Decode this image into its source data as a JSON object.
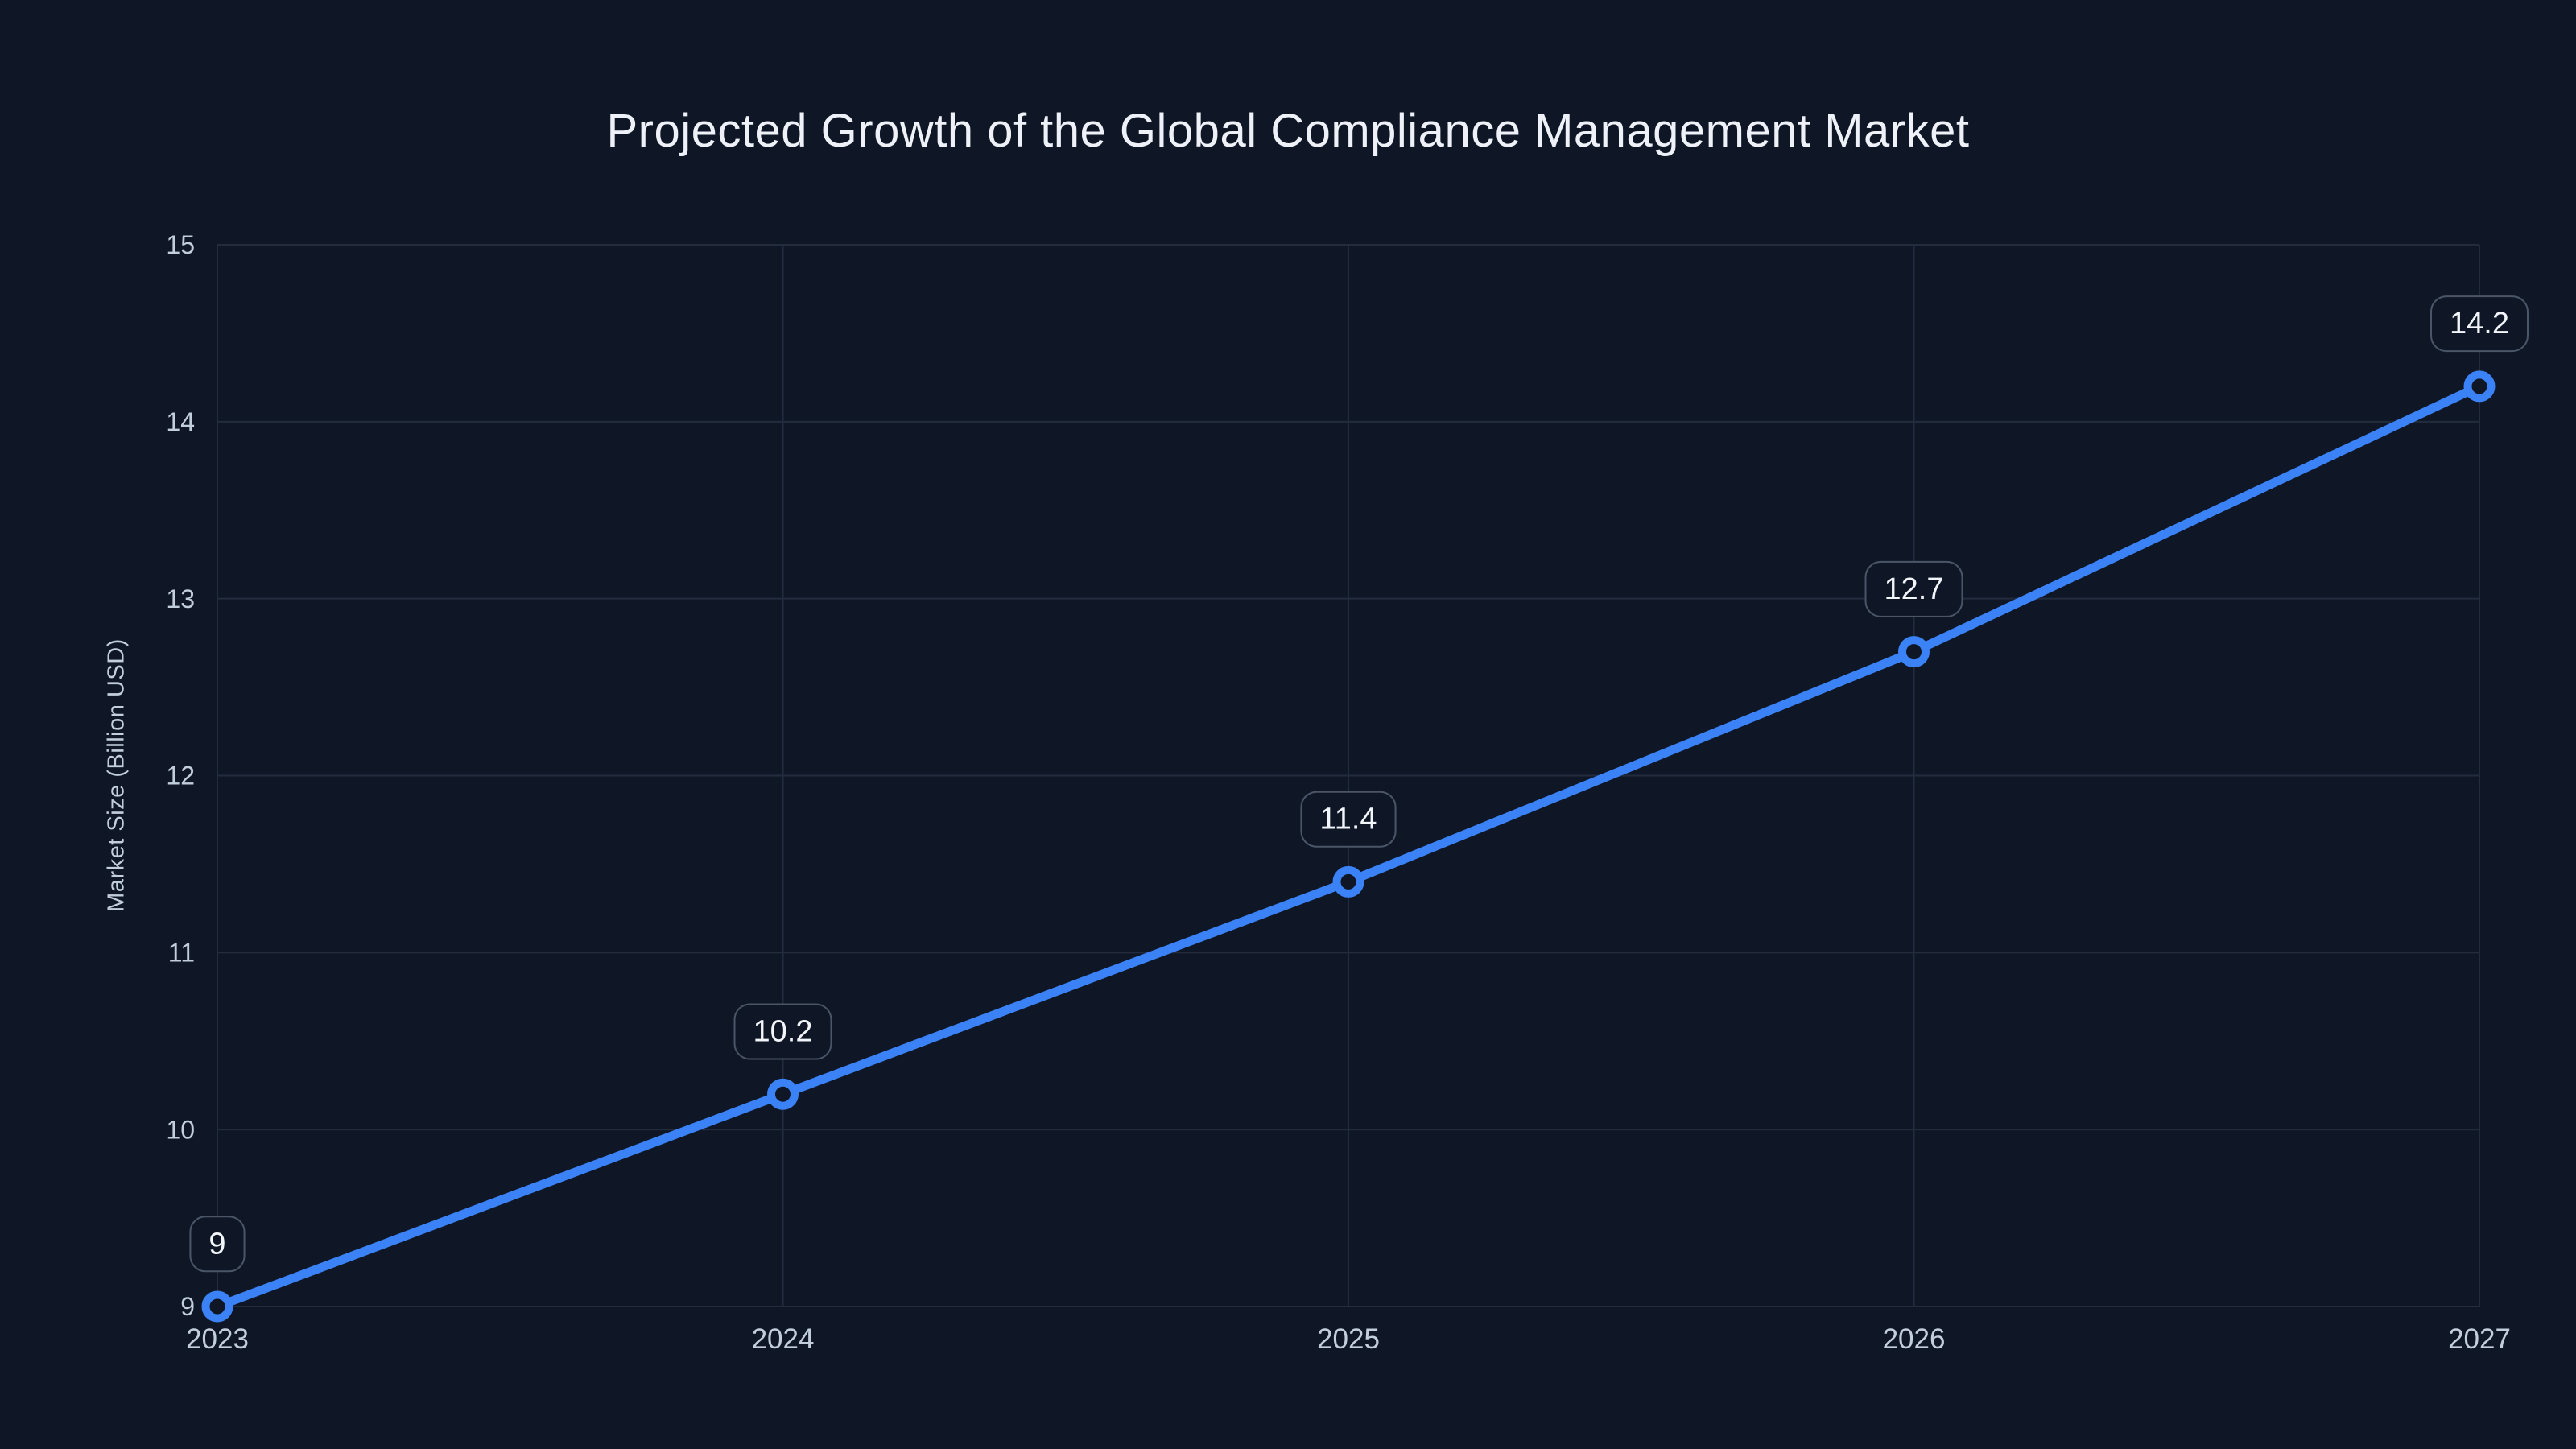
{
  "page": {
    "background_color": "#0f1726"
  },
  "chart_data": {
    "type": "line",
    "title": "Projected Growth of the Global Compliance Management Market",
    "xlabel": "",
    "ylabel": "Market Size (Billion USD)",
    "x": [
      2023,
      2024,
      2025,
      2026,
      2027
    ],
    "x_tick_labels": [
      "2023",
      "2024",
      "2025",
      "2026",
      "2027"
    ],
    "series": [
      {
        "name": "Market Size (Billion USD)",
        "values": [
          9,
          10.2,
          11.4,
          12.7,
          14.2
        ]
      }
    ],
    "point_labels": [
      "9",
      "10.2",
      "11.4",
      "12.7",
      "14.2"
    ],
    "ylim": [
      9,
      15
    ],
    "yticks": [
      9,
      10,
      11,
      12,
      13,
      14,
      15
    ],
    "y_tick_labels": [
      "9",
      "10",
      "11",
      "12",
      "13",
      "14",
      "15"
    ],
    "grid": true,
    "legend": false,
    "colors": {
      "background": "#0f1726",
      "line": "#3b82f6",
      "marker_stroke": "#3b82f6",
      "marker_fill": "#0f1726",
      "grid": "#222c3e",
      "tick_text": "#c3cedd",
      "title_text": "#eef2f8",
      "label_box_fill": "#0f1726",
      "label_box_border": "#4a5568",
      "label_text": "#f2f5f9"
    }
  }
}
